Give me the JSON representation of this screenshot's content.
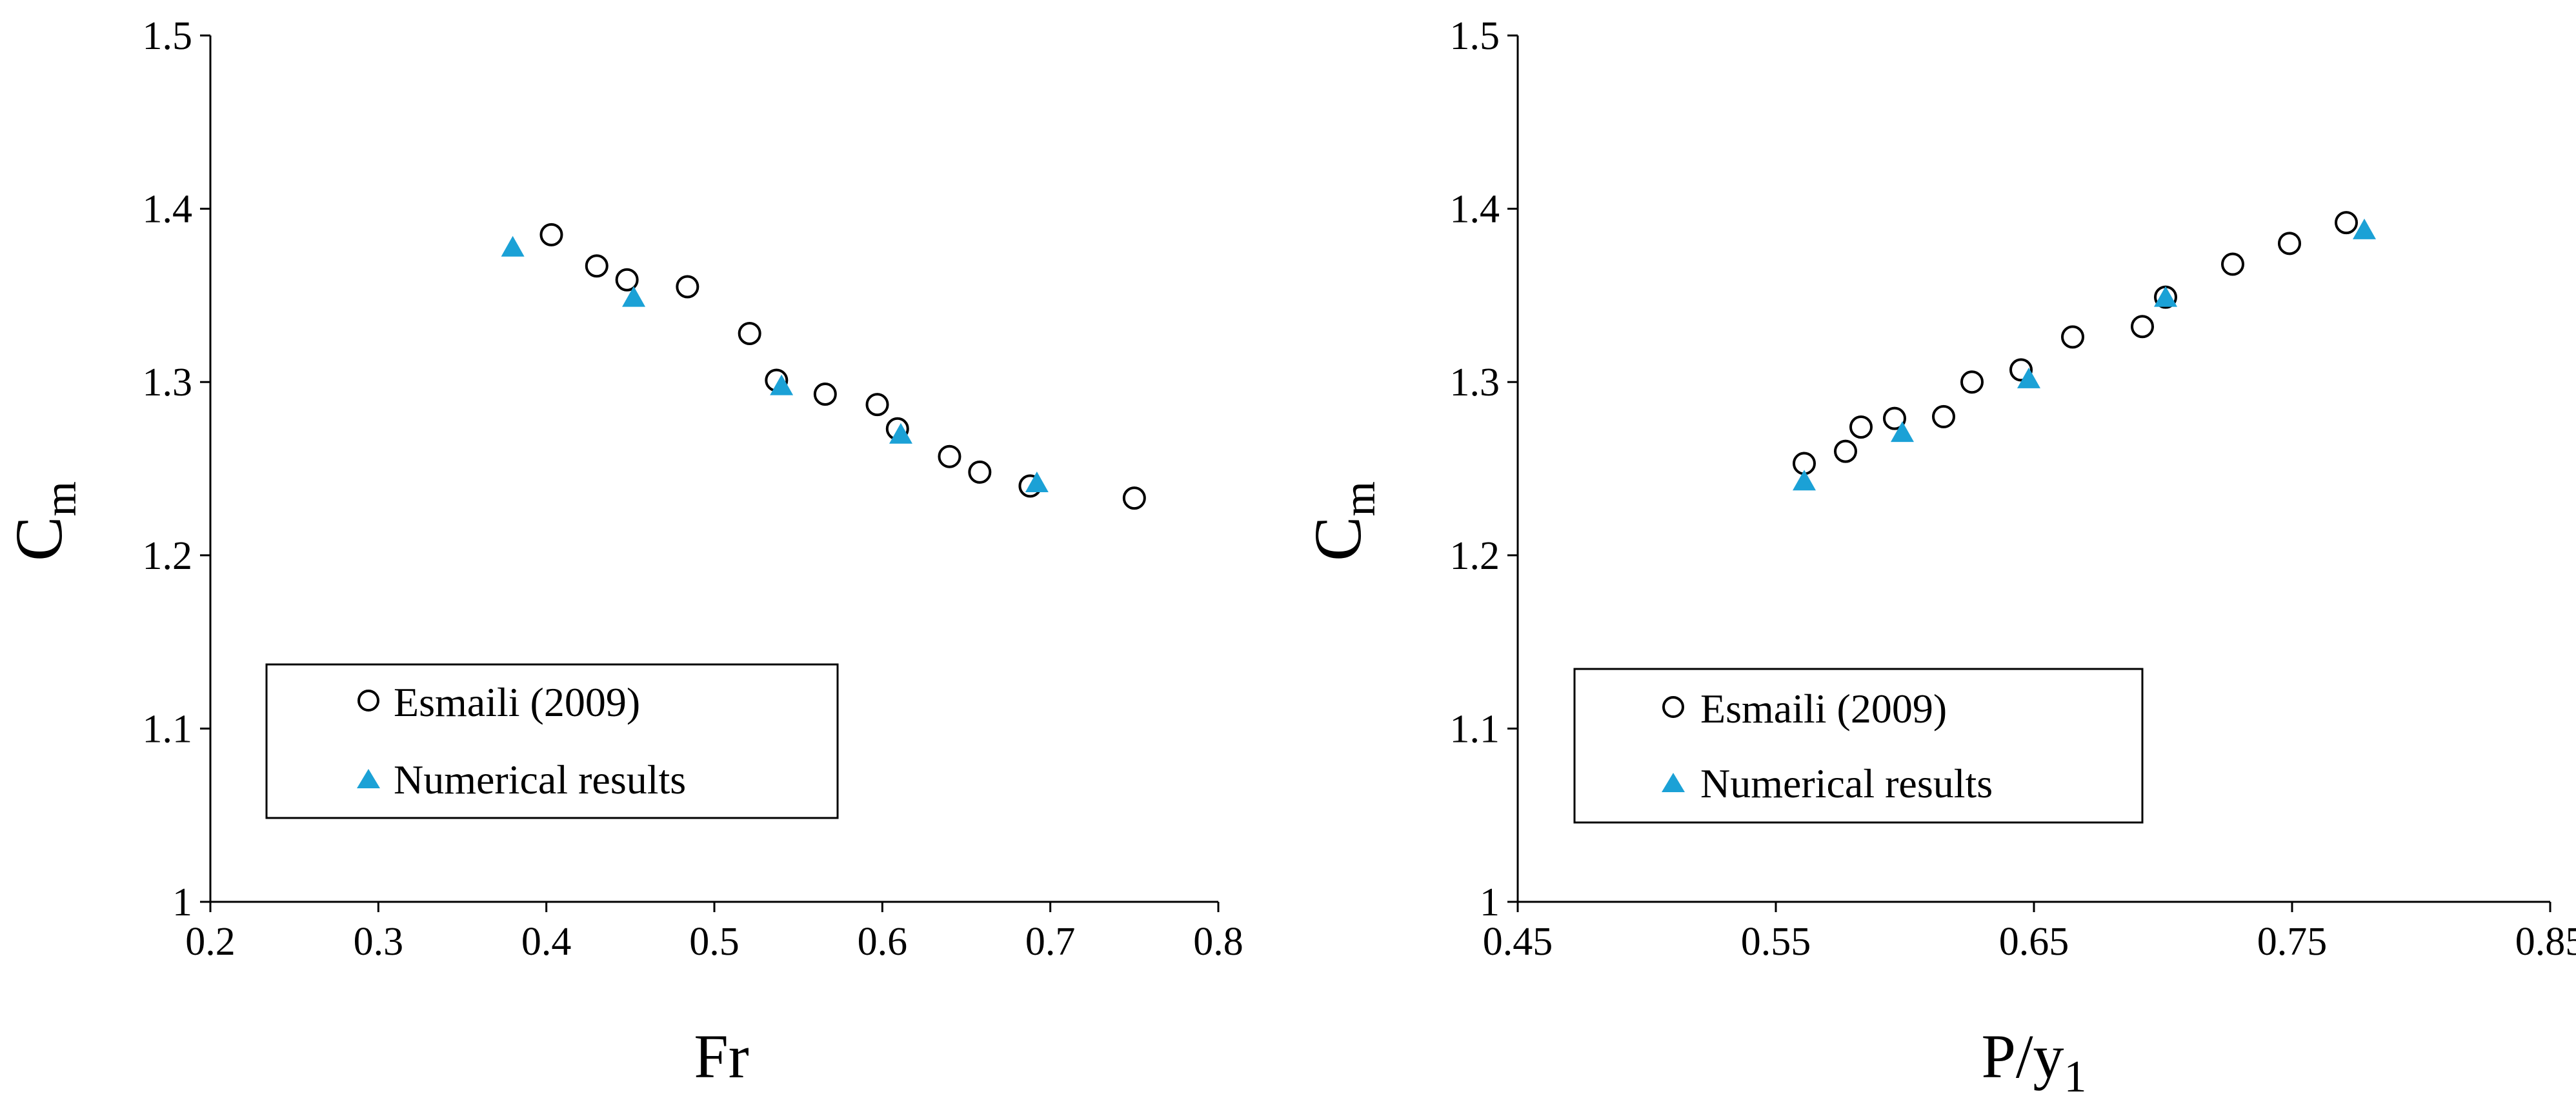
{
  "chart_data": [
    {
      "type": "scatter",
      "title": "",
      "xlabel": "Fr",
      "ylabel_main": "C",
      "ylabel_sub": "m",
      "xlim": [
        0.2,
        0.8
      ],
      "ylim": [
        1.0,
        1.5
      ],
      "xticks": [
        0.2,
        0.3,
        0.4,
        0.5,
        0.6,
        0.7,
        0.8
      ],
      "yticks": [
        1.0,
        1.1,
        1.2,
        1.3,
        1.4,
        1.5
      ],
      "xtick_labels": [
        "0.2",
        "0.3",
        "0.4",
        "0.5",
        "0.6",
        "0.7",
        "0.8"
      ],
      "ytick_labels": [
        "1",
        "1.1",
        "1.2",
        "1.3",
        "1.4",
        "1.5"
      ],
      "grid": false,
      "legend_position": "bottom-left",
      "series": [
        {
          "name": "Esmaili (2009)",
          "marker": "circle-open",
          "color": "#000000",
          "points": [
            [
              0.403,
              1.385
            ],
            [
              0.43,
              1.367
            ],
            [
              0.448,
              1.359
            ],
            [
              0.484,
              1.355
            ],
            [
              0.521,
              1.328
            ],
            [
              0.537,
              1.301
            ],
            [
              0.566,
              1.293
            ],
            [
              0.597,
              1.287
            ],
            [
              0.609,
              1.273
            ],
            [
              0.64,
              1.257
            ],
            [
              0.658,
              1.248
            ],
            [
              0.688,
              1.24
            ],
            [
              0.75,
              1.233
            ]
          ]
        },
        {
          "name": "Numerical results",
          "marker": "triangle-filled",
          "color": "#1BA1D6",
          "points": [
            [
              0.38,
              1.378
            ],
            [
              0.452,
              1.349
            ],
            [
              0.54,
              1.298
            ],
            [
              0.611,
              1.27
            ],
            [
              0.692,
              1.242
            ]
          ]
        }
      ]
    },
    {
      "type": "scatter",
      "title": "",
      "xlabel_main": "P/y",
      "xlabel_sub": "1",
      "ylabel_main": "C",
      "ylabel_sub": "m",
      "xlim": [
        0.45,
        0.85
      ],
      "ylim": [
        1.0,
        1.5
      ],
      "xticks": [
        0.45,
        0.55,
        0.65,
        0.75,
        0.85
      ],
      "yticks": [
        1.0,
        1.1,
        1.2,
        1.3,
        1.4,
        1.5
      ],
      "xtick_labels": [
        "0.45",
        "0.55",
        "0.65",
        "0.75",
        "0.85"
      ],
      "ytick_labels": [
        "1",
        "1.1",
        "1.2",
        "1.3",
        "1.4",
        "1.5"
      ],
      "grid": false,
      "legend_position": "bottom-left",
      "series": [
        {
          "name": "Esmaili (2009)",
          "marker": "circle-open",
          "color": "#000000",
          "points": [
            [
              0.561,
              1.253
            ],
            [
              0.577,
              1.26
            ],
            [
              0.583,
              1.274
            ],
            [
              0.596,
              1.279
            ],
            [
              0.615,
              1.28
            ],
            [
              0.626,
              1.3
            ],
            [
              0.645,
              1.307
            ],
            [
              0.665,
              1.326
            ],
            [
              0.692,
              1.332
            ],
            [
              0.701,
              1.349
            ],
            [
              0.727,
              1.368
            ],
            [
              0.749,
              1.38
            ],
            [
              0.771,
              1.392
            ]
          ]
        },
        {
          "name": "Numerical results",
          "marker": "triangle-filled",
          "color": "#1BA1D6",
          "points": [
            [
              0.561,
              1.243
            ],
            [
              0.599,
              1.271
            ],
            [
              0.648,
              1.302
            ],
            [
              0.701,
              1.349
            ],
            [
              0.778,
              1.388
            ]
          ]
        }
      ]
    }
  ]
}
